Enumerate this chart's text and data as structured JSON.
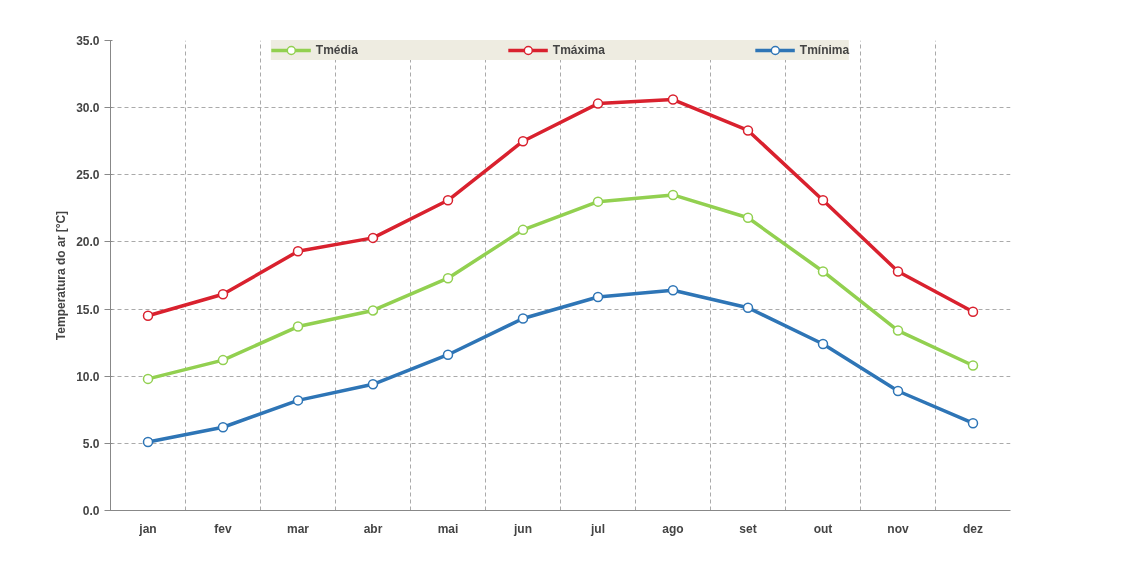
{
  "chart_data": {
    "type": "line",
    "ylabel": "Temperatura do ar [°C]",
    "categories": [
      "jan",
      "fev",
      "mar",
      "abr",
      "mai",
      "jun",
      "jul",
      "ago",
      "set",
      "out",
      "nov",
      "dez"
    ],
    "series": [
      {
        "name": "Tmédia",
        "color": "#92d050",
        "values": [
          9.8,
          11.2,
          13.7,
          14.9,
          17.3,
          20.9,
          23.0,
          23.5,
          21.8,
          17.8,
          13.4,
          10.8
        ]
      },
      {
        "name": "Tmáxima",
        "color": "#d9212e",
        "values": [
          14.5,
          16.1,
          19.3,
          20.3,
          23.1,
          27.5,
          30.3,
          30.6,
          28.3,
          23.1,
          17.8,
          14.8
        ]
      },
      {
        "name": "Tmínima",
        "color": "#2e75b6",
        "values": [
          5.1,
          6.2,
          8.2,
          9.4,
          11.6,
          14.3,
          15.9,
          16.4,
          15.1,
          12.4,
          8.9,
          6.5
        ]
      }
    ],
    "ylim": [
      0,
      35
    ],
    "yticks": [
      {
        "value": 0,
        "label": "0.0"
      },
      {
        "value": 5,
        "label": "5.0"
      },
      {
        "value": 10,
        "label": "10.0"
      },
      {
        "value": 15,
        "label": "15.0"
      },
      {
        "value": 20,
        "label": "20.0"
      },
      {
        "value": 25,
        "label": "25.0"
      },
      {
        "value": 30,
        "label": "30.0"
      },
      {
        "value": 35,
        "label": "35.0"
      }
    ],
    "grid": true,
    "legend": "top",
    "marker": "circle",
    "line_style": "solid"
  }
}
